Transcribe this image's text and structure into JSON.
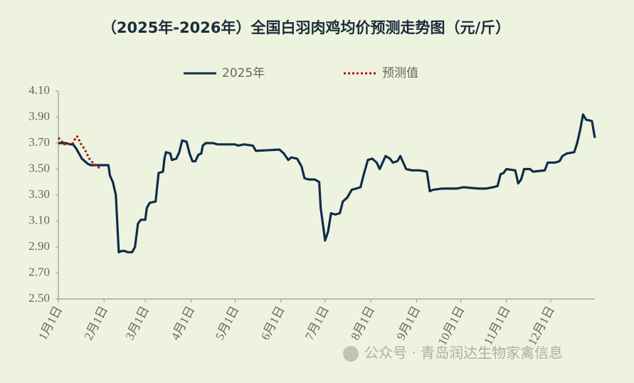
{
  "chart_data": {
    "type": "line",
    "title": "（2025年-2026年）全国白羽肉鸡均价预测走势图（元/斤）",
    "watermark": "公众号 · 青岛润达生物家禽信息",
    "xlim": [
      0,
      364
    ],
    "xticks": [
      {
        "value": 0,
        "label": "1月1日"
      },
      {
        "value": 31,
        "label": "2月1日"
      },
      {
        "value": 59,
        "label": "3月1日"
      },
      {
        "value": 90,
        "label": "4月1日"
      },
      {
        "value": 120,
        "label": "5月1日"
      },
      {
        "value": 151,
        "label": "6月1日"
      },
      {
        "value": 181,
        "label": "7月1日"
      },
      {
        "value": 212,
        "label": "8月1日"
      },
      {
        "value": 243,
        "label": "9月1日"
      },
      {
        "value": 273,
        "label": "10月1日"
      },
      {
        "value": 304,
        "label": "11月1日"
      },
      {
        "value": 334,
        "label": "12月1日"
      }
    ],
    "ylim": [
      2.5,
      4.1
    ],
    "yticks": [
      {
        "value": 2.5,
        "label": "2.50"
      },
      {
        "value": 2.7,
        "label": "2.70"
      },
      {
        "value": 2.9,
        "label": "2.90"
      },
      {
        "value": 3.1,
        "label": "3.10"
      },
      {
        "value": 3.3,
        "label": "3.30"
      },
      {
        "value": 3.5,
        "label": "3.50"
      },
      {
        "value": 3.7,
        "label": "3.70"
      },
      {
        "value": 3.9,
        "label": "3.90"
      },
      {
        "value": 4.1,
        "label": "4.10"
      }
    ],
    "grid": false,
    "series": [
      {
        "name": "2025年",
        "color": "#0f2d4a",
        "line_style": "solid",
        "x": [
          0,
          5,
          8,
          10,
          12,
          14,
          16,
          18,
          20,
          22,
          31,
          34,
          35,
          37,
          39,
          41,
          43,
          45,
          47,
          50,
          52,
          54,
          56,
          59,
          60,
          62,
          66,
          68,
          71,
          72,
          73,
          76,
          77,
          80,
          82,
          84,
          87,
          89,
          91,
          93,
          95,
          97,
          98,
          100,
          105,
          108,
          120,
          122,
          126,
          132,
          134,
          150,
          153,
          156,
          158,
          162,
          165,
          167,
          170,
          174,
          177,
          178,
          181,
          183,
          185,
          188,
          191,
          193,
          196,
          199,
          202,
          205,
          207,
          210,
          213,
          216,
          218,
          220,
          222,
          225,
          227,
          230,
          232,
          234,
          236,
          240,
          245,
          250,
          252,
          254,
          260,
          270,
          275,
          285,
          290,
          295,
          298,
          300,
          302,
          304,
          310,
          312,
          314,
          316,
          320,
          322,
          330,
          332,
          337,
          340,
          342,
          345,
          350,
          352,
          354,
          356,
          358,
          362,
          364
        ],
        "values": [
          3.7,
          3.7,
          3.69,
          3.69,
          3.66,
          3.62,
          3.58,
          3.56,
          3.54,
          3.53,
          3.53,
          3.53,
          3.45,
          3.4,
          3.3,
          2.86,
          2.87,
          2.87,
          2.86,
          2.86,
          2.9,
          3.08,
          3.11,
          3.11,
          3.2,
          3.24,
          3.25,
          3.47,
          3.48,
          3.58,
          3.63,
          3.62,
          3.57,
          3.58,
          3.63,
          3.72,
          3.71,
          3.62,
          3.56,
          3.56,
          3.61,
          3.62,
          3.68,
          3.7,
          3.7,
          3.69,
          3.69,
          3.68,
          3.69,
          3.68,
          3.64,
          3.65,
          3.62,
          3.57,
          3.59,
          3.58,
          3.52,
          3.43,
          3.42,
          3.42,
          3.4,
          3.2,
          2.95,
          3.02,
          3.16,
          3.15,
          3.16,
          3.25,
          3.28,
          3.34,
          3.35,
          3.36,
          3.45,
          3.57,
          3.58,
          3.55,
          3.5,
          3.55,
          3.6,
          3.58,
          3.55,
          3.56,
          3.6,
          3.55,
          3.5,
          3.49,
          3.49,
          3.48,
          3.33,
          3.34,
          3.35,
          3.35,
          3.36,
          3.35,
          3.35,
          3.36,
          3.37,
          3.46,
          3.47,
          3.5,
          3.49,
          3.39,
          3.42,
          3.5,
          3.5,
          3.48,
          3.49,
          3.55,
          3.55,
          3.56,
          3.6,
          3.62,
          3.63,
          3.7,
          3.8,
          3.92,
          3.88,
          3.87,
          3.74
        ]
      },
      {
        "name": "预测值",
        "color": "#a01c14",
        "line_style": "dotted",
        "x": [
          0,
          2,
          4,
          6,
          8,
          10,
          12,
          13,
          15,
          18,
          21,
          24,
          27,
          28
        ],
        "values": [
          3.74,
          3.72,
          3.69,
          3.7,
          3.69,
          3.7,
          3.75,
          3.75,
          3.7,
          3.65,
          3.58,
          3.54,
          3.52,
          3.5
        ]
      }
    ]
  }
}
